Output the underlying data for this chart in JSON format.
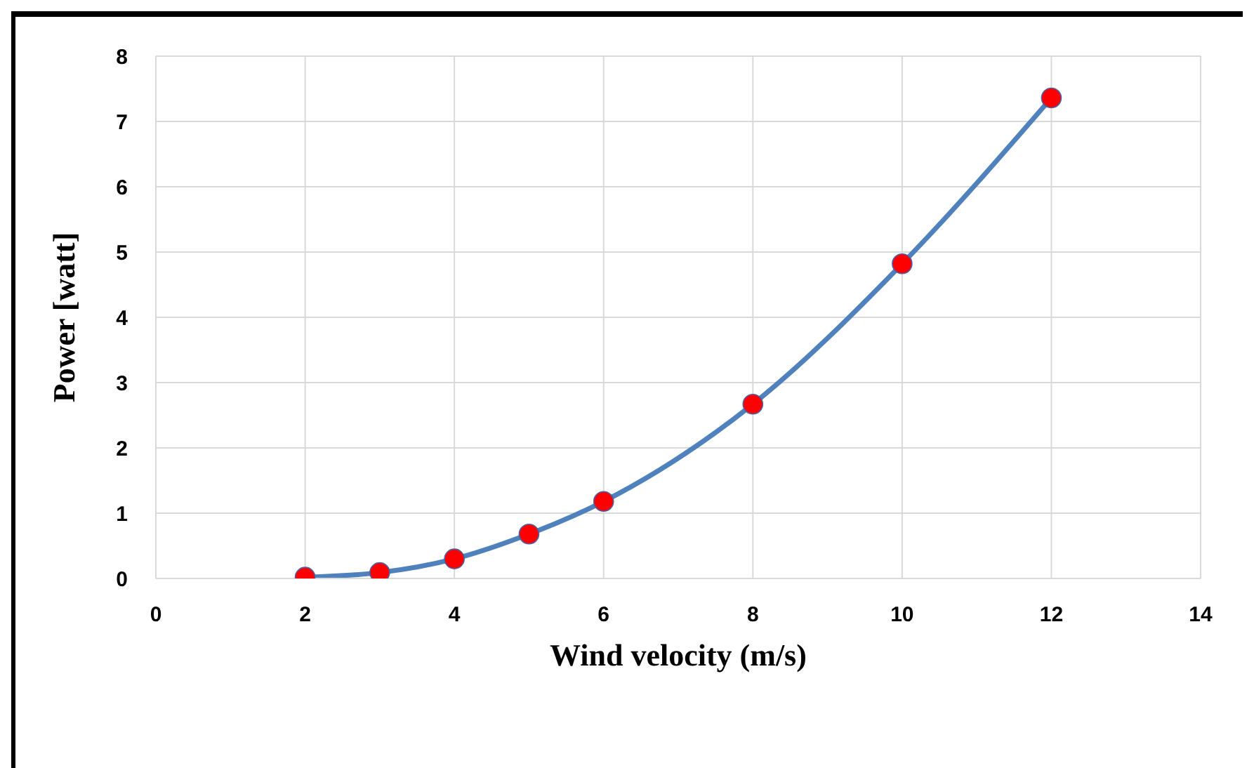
{
  "chart_data": {
    "type": "line",
    "xlabel": "Wind velocity (m/s)",
    "ylabel": "Power  [watt]",
    "x": [
      2,
      3,
      4,
      5,
      6,
      8,
      10,
      12
    ],
    "series": [
      {
        "color": "#4f81bd",
        "values": [
          0.02,
          0.09,
          0.3,
          0.68,
          1.18,
          2.67,
          4.82,
          7.36
        ]
      }
    ],
    "xlim": [
      0,
      14
    ],
    "xticks": [
      0,
      2,
      4,
      6,
      8,
      10,
      12,
      14
    ],
    "ylim": [
      0,
      8
    ],
    "yticks": [
      0,
      1,
      2,
      3,
      4,
      5,
      6,
      7,
      8
    ],
    "grid": true,
    "marker": "circle",
    "line_style": "solid",
    "legend": false
  }
}
